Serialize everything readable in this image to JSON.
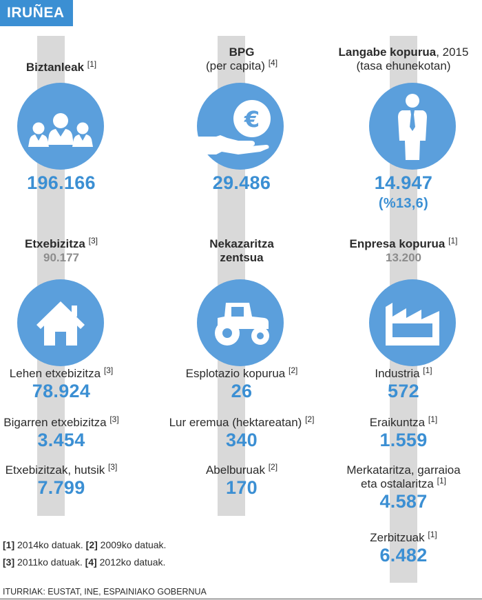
{
  "title": "IRUÑEA",
  "populazioa": {
    "label": "Biztanleak",
    "ref": "[1]",
    "value": "196.166"
  },
  "bpg": {
    "label": "BPG",
    "sub": "(per capita)",
    "ref": "[4]",
    "value": "29.486"
  },
  "langabe": {
    "label": "Langabe kopurua",
    "year": ", 2015",
    "sub": "(tasa ehunekotan)",
    "value": "14.947",
    "rate": "(%13,6)"
  },
  "etxebizitza": {
    "label": "Etxebizitza",
    "ref": "[3]",
    "total": "90.177",
    "items": [
      {
        "label": "Lehen etxebizitza",
        "ref": "[3]",
        "value": "78.924"
      },
      {
        "label": "Bigarren etxebizitza",
        "ref": "[3]",
        "value": "3.454"
      },
      {
        "label": "Etxebizitzak, hutsik",
        "ref": "[3]",
        "value": "7.799"
      }
    ]
  },
  "nekazaritza": {
    "label1": "Nekazaritza",
    "label2": "zentsua",
    "items": [
      {
        "label": "Esplotazio kopurua",
        "ref": "[2]",
        "value": "26"
      },
      {
        "label": "Lur eremua (hektareatan)",
        "ref": "[2]",
        "value": "340"
      },
      {
        "label": "Abelburuak",
        "ref": "[2]",
        "value": "170"
      }
    ]
  },
  "enpresa": {
    "label": "Enpresa kopurua",
    "ref": "[1]",
    "total": "13.200",
    "items": [
      {
        "label": "Industria",
        "ref": "[1]",
        "value": "572"
      },
      {
        "label": "Eraikuntza",
        "ref": "[1]",
        "value": "1.559"
      },
      {
        "label": "Merkataritza, garraioa",
        "label2": "eta ostalaritza",
        "ref": "[1]",
        "value": "4.587"
      },
      {
        "label": "Zerbitzuak",
        "ref": "[1]",
        "value": "6.482"
      }
    ]
  },
  "notes": {
    "n1": "[1]",
    "t1": " 2014ko datuak. ",
    "n2": "[2]",
    "t2": " 2009ko datuak.",
    "n3": "[3]",
    "t3": " 2011ko datuak. ",
    "n4": "[4]",
    "t4": " 2012ko datuak."
  },
  "sources": "ITURRIAK: EUSTAT, INE, ESPAINIAKO GOBERNUA",
  "colors": {
    "accent": "#3b8fd3",
    "circle": "#5b9fdc",
    "stripe": "#d9d9d9",
    "grey_value": "#8c8c8c"
  },
  "icons": [
    "people-icon",
    "euro-hand-icon",
    "person-tie-icon",
    "house-icon",
    "tractor-icon",
    "factory-icon"
  ]
}
